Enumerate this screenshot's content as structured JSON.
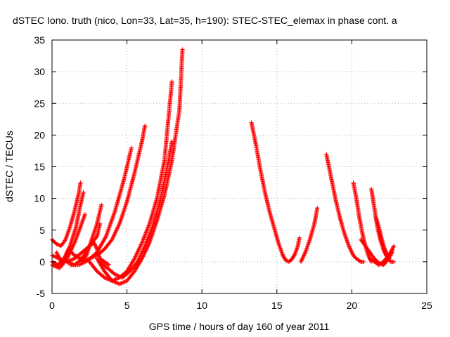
{
  "chart_data": {
    "type": "scatter",
    "title": "dSTEC Iono. truth (nico, Lon=33, Lat=35, h=190): STEC-STEC_elemax in phase cont. a",
    "xlabel": "GPS time / hours of day 160 of year 2011",
    "ylabel": "dSTEC  / TECUs",
    "xlim": [
      0,
      25
    ],
    "ylim": [
      -5,
      35
    ],
    "xticks": [
      0,
      5,
      10,
      15,
      20,
      25
    ],
    "yticks": [
      -5,
      0,
      5,
      10,
      15,
      20,
      25,
      30,
      35
    ],
    "grid": true,
    "marker": "+",
    "color": "#ff0000",
    "series": [
      {
        "x": [
          0.0,
          0.3,
          0.6,
          0.9,
          1.2,
          1.5,
          1.8,
          1.9
        ],
        "y": [
          3.5,
          2.8,
          2.5,
          3.5,
          5.5,
          8.0,
          11.0,
          12.5
        ]
      },
      {
        "x": [
          0.0,
          0.4,
          0.8,
          1.2,
          1.6,
          1.9,
          2.1
        ],
        "y": [
          0.0,
          -0.5,
          0.5,
          2.5,
          5.5,
          9.0,
          11.0
        ]
      },
      {
        "x": [
          0.0,
          0.5,
          1.0,
          1.5,
          1.9,
          2.2
        ],
        "y": [
          -0.5,
          -1.0,
          0.5,
          3.0,
          5.5,
          7.5
        ]
      },
      {
        "x": [
          0.0,
          0.5,
          1.0,
          1.5,
          2.0,
          2.5,
          3.0,
          3.3
        ],
        "y": [
          1.0,
          0.5,
          0.0,
          -0.5,
          0.5,
          2.5,
          6.0,
          9.0
        ]
      },
      {
        "x": [
          0.3,
          0.7,
          1.1,
          1.5,
          1.9,
          2.1,
          2.3,
          2.5,
          2.8,
          3.0,
          3.2,
          3.5,
          3.8
        ],
        "y": [
          1.5,
          -0.5,
          2.0,
          1.0,
          0.5,
          0.5,
          1.0,
          2.5,
          3.0,
          2.0,
          0.5,
          0.0,
          -0.5
        ]
      },
      {
        "x": [
          1.0,
          1.5,
          2.0,
          2.5,
          3.0,
          3.2
        ],
        "y": [
          0.0,
          0.5,
          1.5,
          2.5,
          4.0,
          6.0
        ]
      },
      {
        "x": [
          1.2,
          1.8,
          2.4,
          3.0,
          3.6,
          4.2,
          4.8,
          5.3
        ],
        "y": [
          -0.5,
          -0.5,
          0.2,
          1.5,
          4.0,
          8.0,
          13.0,
          18.0
        ]
      },
      {
        "x": [
          2.0,
          2.5,
          3.0,
          3.5,
          4.0,
          4.5,
          5.0,
          5.5,
          6.0,
          6.2
        ],
        "y": [
          0.0,
          0.5,
          1.0,
          2.0,
          3.5,
          6.0,
          9.5,
          14.0,
          19.0,
          21.5
        ]
      },
      {
        "x": [
          2.5,
          3.0,
          3.5,
          4.0,
          4.5,
          5.0,
          5.5,
          6.0,
          6.5,
          7.0,
          7.5,
          8.0
        ],
        "y": [
          0.0,
          -1.5,
          -2.5,
          -3.0,
          -2.5,
          -1.5,
          0.5,
          3.0,
          6.0,
          10.0,
          16.0,
          28.5
        ]
      },
      {
        "x": [
          3.0,
          3.5,
          4.0,
          4.5,
          5.0,
          5.5,
          6.0,
          6.5,
          7.0,
          7.5,
          8.0,
          8.5,
          8.7
        ],
        "y": [
          0.5,
          -1.5,
          -3.0,
          -3.5,
          -3.0,
          -1.5,
          0.5,
          3.0,
          6.5,
          10.5,
          16.0,
          24.0,
          33.5
        ]
      },
      {
        "x": [
          3.2,
          3.7,
          4.2,
          4.7,
          5.2,
          5.7,
          6.2,
          6.7,
          7.2,
          7.7,
          8.0
        ],
        "y": [
          0.0,
          -1.0,
          -2.0,
          -2.5,
          -1.5,
          0.0,
          2.5,
          5.5,
          9.5,
          15.0,
          19.0
        ]
      },
      {
        "x": [
          13.3,
          13.6,
          13.9,
          14.2,
          14.5,
          14.8,
          15.1,
          15.4,
          15.6,
          15.8,
          16.0,
          16.2,
          16.4,
          16.5
        ],
        "y": [
          22.0,
          18.5,
          14.5,
          11.0,
          8.0,
          5.5,
          3.0,
          1.0,
          0.2,
          0.0,
          0.4,
          1.2,
          2.5,
          3.8
        ]
      },
      {
        "x": [
          16.6,
          16.9,
          17.2,
          17.5,
          17.7
        ],
        "y": [
          0.0,
          1.5,
          3.5,
          6.0,
          8.5
        ]
      },
      {
        "x": [
          18.3,
          18.6,
          18.9,
          19.2,
          19.5,
          19.8,
          20.1,
          20.3,
          20.6,
          20.8
        ],
        "y": [
          17.0,
          13.5,
          10.0,
          7.0,
          4.5,
          2.5,
          1.0,
          0.5,
          0.0,
          0.0
        ]
      },
      {
        "x": [
          20.1,
          20.3,
          20.5,
          20.7,
          20.9,
          21.1,
          21.3
        ],
        "y": [
          12.5,
          10.0,
          7.0,
          4.5,
          2.5,
          1.0,
          0.0
        ]
      },
      {
        "x": [
          20.6,
          20.9,
          21.2,
          21.5,
          21.8,
          22.1,
          22.4,
          22.7
        ],
        "y": [
          3.5,
          2.5,
          1.5,
          0.5,
          -0.2,
          -0.5,
          0.3,
          1.5
        ]
      },
      {
        "x": [
          21.3,
          21.5,
          21.7,
          21.9,
          22.1,
          22.3,
          22.5
        ],
        "y": [
          11.5,
          8.5,
          5.5,
          3.5,
          2.0,
          1.0,
          0.5
        ]
      },
      {
        "x": [
          21.6,
          21.8,
          22.0,
          22.2,
          22.4,
          22.6,
          22.8
        ],
        "y": [
          7.0,
          5.5,
          3.5,
          2.0,
          1.0,
          1.5,
          2.5
        ]
      },
      {
        "x": [
          21.2,
          21.5,
          21.8,
          22.1,
          22.4,
          22.7
        ],
        "y": [
          0.5,
          0.0,
          -0.5,
          0.0,
          0.8,
          1.8
        ]
      },
      {
        "x": [
          21.8,
          22.0,
          22.2,
          22.4,
          22.6,
          22.8
        ],
        "y": [
          5.0,
          3.0,
          1.5,
          0.5,
          0.0,
          0.0
        ]
      }
    ]
  }
}
